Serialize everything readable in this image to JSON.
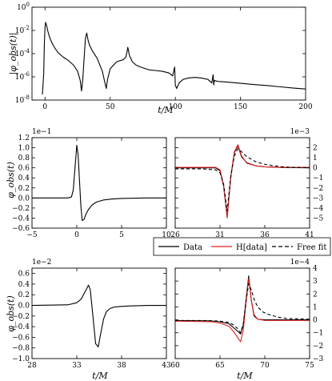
{
  "chart_data": [
    {
      "type": "line",
      "ylabel": "|φ_obs(t)|",
      "xlabel": "t/M",
      "xlim": [
        -10,
        200
      ],
      "ylim": [
        1e-08,
        1
      ],
      "yscale": "log",
      "xticks": [
        "0",
        "50",
        "100",
        "150",
        "200"
      ],
      "yticks": [
        "10^0",
        "10^-2",
        "10^-4",
        "10^-6",
        "10^-8"
      ],
      "series": [
        {
          "x": [
            -2,
            -1,
            -0.5,
            0,
            0.5,
            1,
            1.5,
            2,
            3,
            4,
            6,
            8,
            10,
            14,
            18,
            22,
            25,
            27,
            28,
            29,
            30,
            31,
            32,
            32.5,
            33,
            34,
            36,
            40,
            44,
            46,
            47,
            48,
            50,
            55,
            60,
            62,
            63,
            63.5,
            64,
            64.5,
            65,
            67,
            70,
            75,
            80,
            85,
            90,
            95,
            98,
            99,
            99.5,
            100,
            101,
            103,
            106,
            110,
            115,
            120,
            125,
            128,
            129,
            129.5,
            130,
            131,
            133,
            136,
            140,
            150,
            160,
            170,
            180,
            190,
            200
          ],
          "y": [
            3e-08,
            2e-06,
            0.0008,
            0.02,
            0.05,
            0.03,
            0.02,
            0.01,
            0.004,
            0.0018,
            0.0006,
            0.00025,
            0.00012,
            5e-05,
            2.5e-05,
            1e-05,
            3e-06,
            5e-07,
            6e-08,
            6e-07,
            4e-05,
            0.002,
            0.006,
            0.003,
            0.0015,
            0.0006,
            0.0002,
            4e-05,
            3e-06,
            3e-07,
            1e-07,
            6e-07,
            5e-06,
            2e-05,
            3e-05,
            5e-05,
            0.00015,
            0.00035,
            0.0002,
            0.0001,
            6e-05,
            2e-05,
            1e-05,
            6e-06,
            4e-06,
            3.5e-06,
            3e-06,
            2.2e-06,
            1.2e-06,
            4e-06,
            7e-06,
            2e-07,
            1e-07,
            3e-07,
            6e-07,
            8e-07,
            9e-07,
            8e-07,
            6e-07,
            3e-07,
            1.5e-06,
            2e-07,
            5e-07,
            4.5e-07,
            4e-07,
            3.8e-07,
            3.5e-07,
            2.8e-07,
            2.2e-07,
            1.8e-07,
            1.4e-07,
            1.1e-07,
            9e-08
          ]
        }
      ]
    },
    {
      "type": "line",
      "ylabel": "φ_obs(t)",
      "xlabel": "",
      "multiplier": "1e−1",
      "xlim": [
        -5,
        10
      ],
      "ylim": [
        -0.6,
        1.2
      ],
      "xticks": [
        "−5",
        "0",
        "5",
        "10"
      ],
      "yticks": [
        "1.2",
        "1.0",
        "0.8",
        "0.6",
        "0.4",
        "0.2",
        "0.0",
        "−0.2",
        "−0.4",
        "−0.6"
      ],
      "series": [
        {
          "x": [
            -5,
            -1,
            -0.6,
            -0.4,
            -0.2,
            0,
            0.15,
            0.3,
            0.45,
            0.6,
            0.8,
            1.0,
            1.3,
            1.7,
            2.2,
            3,
            4,
            5,
            6,
            8,
            10
          ],
          "y": [
            0,
            0,
            0.02,
            0.15,
            0.6,
            1.05,
            0.85,
            0.35,
            -0.15,
            -0.45,
            -0.43,
            -0.33,
            -0.23,
            -0.14,
            -0.08,
            -0.04,
            -0.02,
            -0.01,
            -0.005,
            0,
            0
          ]
        }
      ]
    },
    {
      "type": "line",
      "ylabel": "",
      "xlabel": "",
      "multiplier": "1e−3",
      "yaxis_side": "right",
      "xlim": [
        26,
        41
      ],
      "ylim": [
        -6,
        3
      ],
      "xticks": [
        "26",
        "31",
        "36",
        "41"
      ],
      "yticks": [
        "2",
        "1",
        "0",
        "−1",
        "−2",
        "−3",
        "−4",
        "−5"
      ],
      "series": [
        {
          "name": "Data",
          "x": [
            26,
            30.5,
            31,
            31.4,
            31.8,
            32.2,
            32.6,
            33,
            33.4,
            34,
            35,
            36,
            38,
            41
          ],
          "y": [
            0,
            0,
            -0.3,
            -1.8,
            -4.9,
            -1,
            1.5,
            2.2,
            1.1,
            0.5,
            0.2,
            0.1,
            0.03,
            0
          ]
        },
        {
          "name": "H[data]",
          "x": [
            26,
            30.5,
            31,
            31.4,
            31.8,
            32.2,
            32.6,
            33,
            33.4,
            34,
            35,
            36,
            38,
            41
          ],
          "y": [
            0.05,
            0.05,
            -0.2,
            -1.7,
            -5.0,
            -0.9,
            1.6,
            2.3,
            1.2,
            0.45,
            0.2,
            0.1,
            0.05,
            0.05
          ]
        },
        {
          "name": "Free fit",
          "x": [
            26,
            29,
            30.5,
            31,
            31.4,
            31.8,
            32.2,
            32.6,
            33,
            33.4,
            34,
            35,
            36,
            37,
            38,
            39,
            41
          ],
          "y": [
            -0.1,
            -0.1,
            -0.2,
            -0.5,
            -1.6,
            -4.3,
            -0.8,
            1.2,
            1.9,
            1.6,
            1.1,
            0.6,
            0.35,
            0.2,
            0.1,
            0.05,
            0.02
          ]
        }
      ]
    },
    {
      "type": "line",
      "ylabel": "φ_obs(t)",
      "xlabel": "t/M",
      "multiplier": "1e−2",
      "xlim": [
        28,
        43
      ],
      "ylim": [
        -1.0,
        0.7
      ],
      "xticks": [
        "28",
        "33",
        "38",
        "43"
      ],
      "yticks": [
        "0.6",
        "0.4",
        "0.2",
        "0.0",
        "−0.2",
        "−0.4",
        "−0.6",
        "−0.8",
        "−1.0"
      ],
      "series": [
        {
          "x": [
            28,
            32,
            33,
            33.5,
            34,
            34.3,
            34.5,
            34.8,
            35.1,
            35.4,
            35.7,
            36,
            36.3,
            36.7,
            37.2,
            38,
            39,
            41,
            43
          ],
          "y": [
            0,
            0.01,
            0.05,
            0.12,
            0.28,
            0.38,
            0.3,
            -0.2,
            -0.72,
            -0.78,
            -0.5,
            -0.25,
            -0.12,
            -0.06,
            -0.03,
            -0.02,
            -0.01,
            0,
            0
          ]
        }
      ]
    },
    {
      "type": "line",
      "ylabel": "",
      "xlabel": "t/M",
      "multiplier": "1e−4",
      "yaxis_side": "right",
      "xlim": [
        60,
        75
      ],
      "ylim": [
        -3,
        4
      ],
      "xticks": [
        "60",
        "65",
        "70",
        "75"
      ],
      "yticks": [
        "4",
        "3",
        "2",
        "1",
        "0",
        "−1",
        "−2",
        "−3"
      ],
      "series": [
        {
          "name": "Data",
          "x": [
            60,
            64,
            65,
            66,
            66.5,
            67,
            67.3,
            67.6,
            67.9,
            68.2,
            68.5,
            68.8,
            69.2,
            70,
            71,
            72,
            75
          ],
          "y": [
            -0.05,
            -0.08,
            -0.15,
            -0.3,
            -0.6,
            -0.9,
            -1.1,
            -0.4,
            1.5,
            3.4,
            1.5,
            0.3,
            0.05,
            0,
            0,
            0,
            0
          ]
        },
        {
          "name": "H[data]",
          "x": [
            60,
            64,
            65,
            66,
            66.5,
            67,
            67.3,
            67.6,
            67.9,
            68.2,
            68.5,
            68.8,
            69.2,
            70,
            71,
            72,
            75
          ],
          "y": [
            -0.1,
            -0.15,
            -0.25,
            -0.5,
            -0.9,
            -1.4,
            -1.7,
            -0.8,
            1.3,
            3.2,
            1.5,
            0.4,
            0.05,
            -0.05,
            -0.05,
            -0.05,
            -0.05
          ]
        },
        {
          "name": "Free fit",
          "x": [
            60,
            63,
            65,
            66,
            66.5,
            67,
            67.3,
            67.6,
            67.9,
            68.2,
            68.5,
            68.8,
            69.2,
            69.8,
            70.5,
            71.5,
            72.5,
            75
          ],
          "y": [
            -0.05,
            -0.05,
            -0.1,
            -0.2,
            -0.4,
            -0.7,
            -1.0,
            -0.3,
            1.4,
            2.8,
            2.3,
            1.6,
            1.0,
            0.6,
            0.4,
            0.2,
            0.1,
            0.05
          ]
        }
      ]
    }
  ],
  "legend": {
    "entries": [
      {
        "label": "Data",
        "color": "#000000",
        "style": "solid"
      },
      {
        "label": "H[data]",
        "color": "#e02020",
        "style": "solid"
      },
      {
        "label": "Free fit",
        "color": "#000000",
        "style": "dashed"
      }
    ]
  }
}
